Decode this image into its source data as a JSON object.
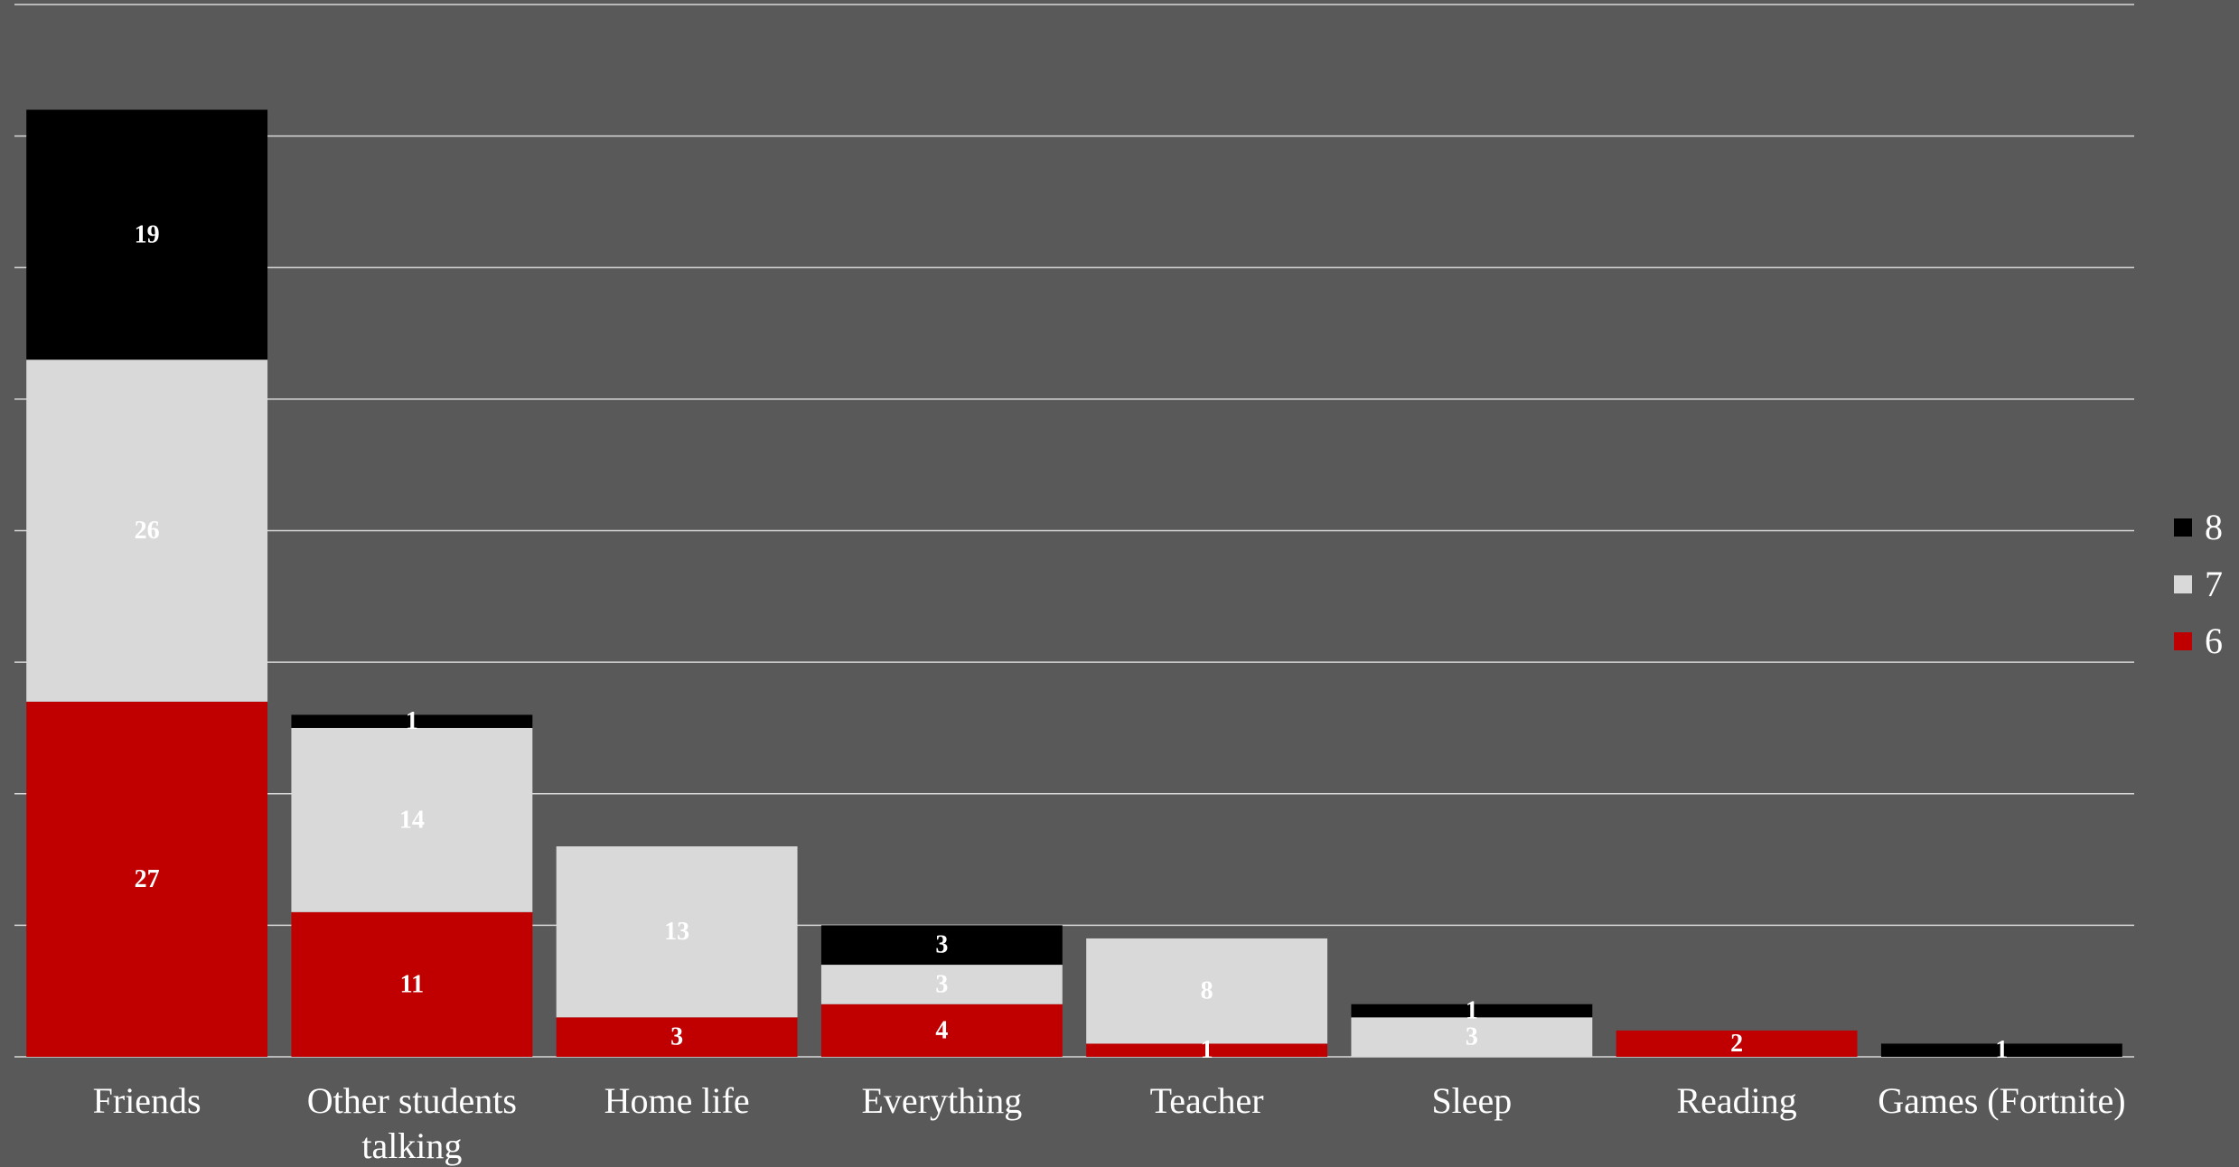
{
  "chart_data": {
    "type": "bar",
    "stacked": true,
    "categories": [
      "Friends",
      "Other students talking",
      "Home life",
      "Everything",
      "Teacher",
      "Sleep",
      "Reading",
      "Games (Fortnite)"
    ],
    "series": [
      {
        "name": "6",
        "color": "#c00000",
        "label_color": "#ffffff",
        "values": [
          27,
          11,
          3,
          4,
          1,
          0,
          2,
          0
        ]
      },
      {
        "name": "7",
        "color": "#d9d9d9",
        "label_color": "#ffffff",
        "values": [
          26,
          14,
          13,
          3,
          8,
          3,
          0,
          0
        ]
      },
      {
        "name": "8",
        "color": "#000000",
        "label_color": "#ffffff",
        "values": [
          19,
          1,
          0,
          3,
          0,
          1,
          0,
          1
        ]
      }
    ],
    "ylim": [
      0,
      80
    ],
    "grid": true,
    "gridline_color": "#d9d9d9",
    "xlabel": "",
    "ylabel": "",
    "legend_position": "right",
    "legend_order": [
      "8",
      "7",
      "6"
    ]
  }
}
